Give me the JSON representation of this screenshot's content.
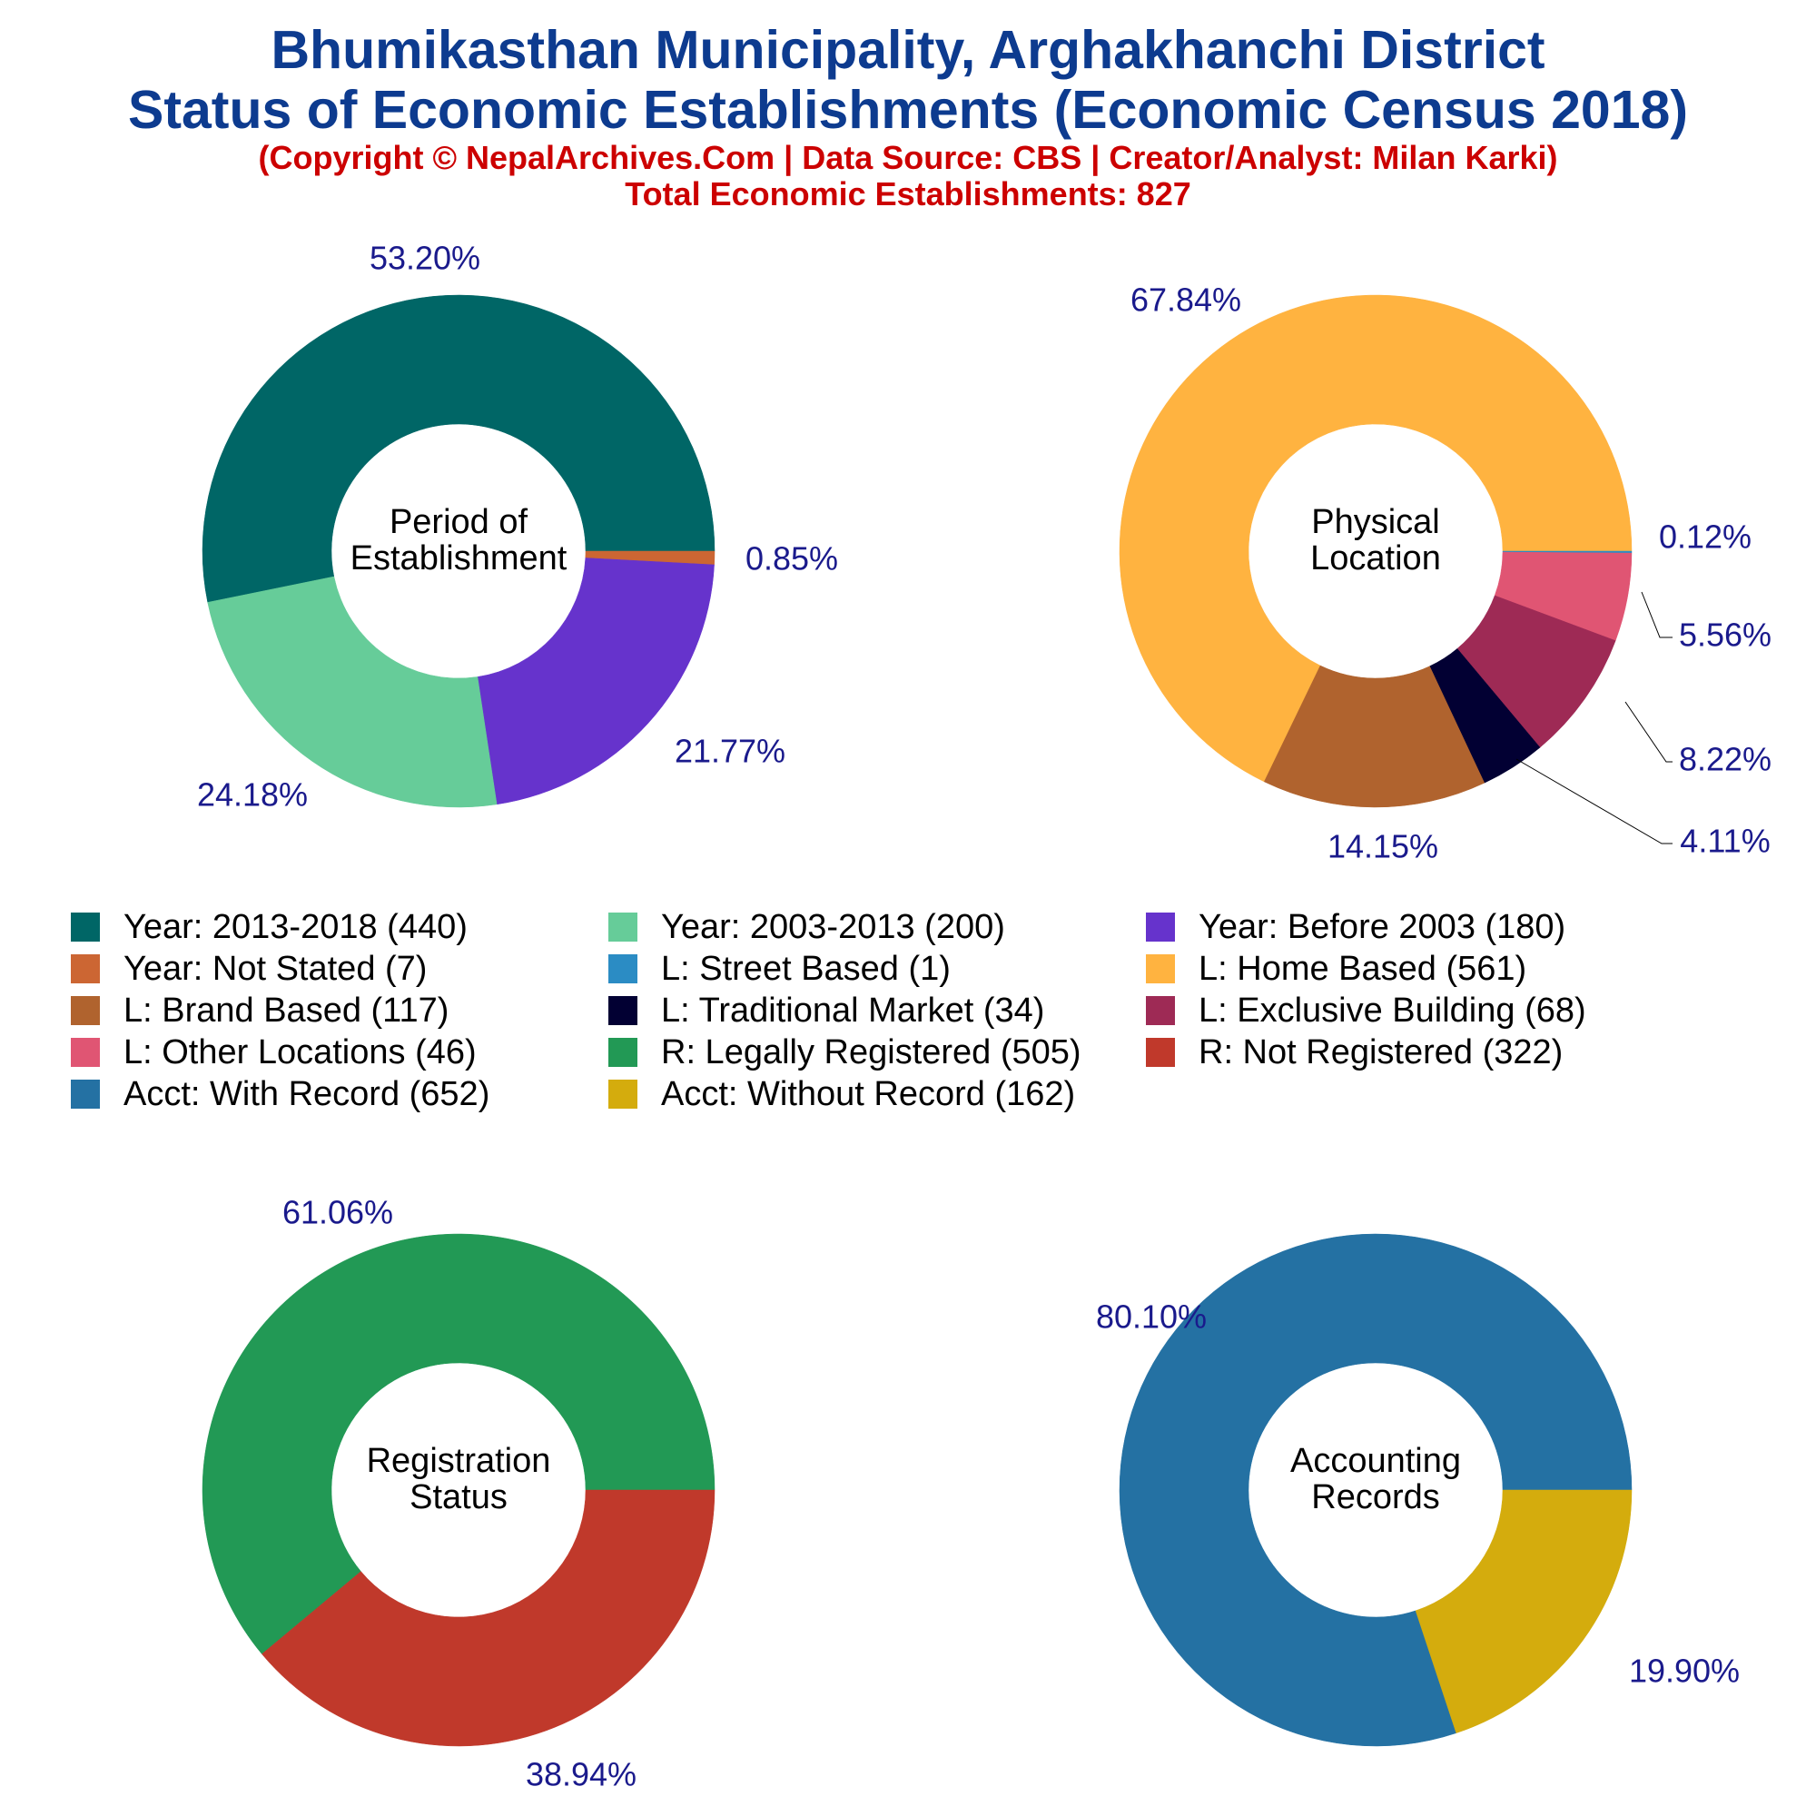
{
  "header": {
    "title_line1": "Bhumikasthan Municipality, Arghakhanchi District",
    "title_line2": "Status of Economic Establishments (Economic Census 2018)",
    "copyright": "(Copyright © NepalArchives.Com | Data Source: CBS | Creator/Analyst: Milan Karki)",
    "total": "Total Economic Establishments: 827"
  },
  "chart_data": [
    {
      "type": "pie",
      "title": "Period of Establishment",
      "title_lines": [
        "Period of",
        "Establishment"
      ],
      "slices": [
        {
          "label": "Year: 2013-2018",
          "value": 440,
          "pct_label": "53.20%",
          "color": "#006666"
        },
        {
          "label": "Year: Not Stated",
          "value": 7,
          "pct_label": "0.85%",
          "color": "#cc6633"
        },
        {
          "label": "Year: Before 2003",
          "value": 180,
          "pct_label": "21.77%",
          "color": "#6633cc"
        },
        {
          "label": "Year: 2003-2013",
          "value": 200,
          "pct_label": "24.18%",
          "color": "#66cc99"
        }
      ]
    },
    {
      "type": "pie",
      "title": "Physical Location",
      "title_lines": [
        "Physical",
        "Location"
      ],
      "slices": [
        {
          "label": "L: Home Based",
          "value": 561,
          "pct_label": "67.84%",
          "color": "#ffb340"
        },
        {
          "label": "L: Street Based",
          "value": 1,
          "pct_label": "0.12%",
          "color": "#2b8cc4"
        },
        {
          "label": "L: Other Locations",
          "value": 46,
          "pct_label": "5.56%",
          "color": "#e05573"
        },
        {
          "label": "L: Exclusive Building",
          "value": 68,
          "pct_label": "8.22%",
          "color": "#9e2a55"
        },
        {
          "label": "L: Traditional Market",
          "value": 34,
          "pct_label": "4.11%",
          "color": "#020033"
        },
        {
          "label": "L: Brand Based",
          "value": 117,
          "pct_label": "14.15%",
          "color": "#b0632e"
        }
      ]
    },
    {
      "type": "pie",
      "title": "Registration Status",
      "title_lines": [
        "Registration",
        "Status"
      ],
      "slices": [
        {
          "label": "R: Legally Registered",
          "value": 505,
          "pct_label": "61.06%",
          "color": "#229955"
        },
        {
          "label": "R: Not Registered",
          "value": 322,
          "pct_label": "38.94%",
          "color": "#c0392b"
        }
      ]
    },
    {
      "type": "pie",
      "title": "Accounting Records",
      "title_lines": [
        "Accounting",
        "Records"
      ],
      "slices": [
        {
          "label": "Acct: With Record",
          "value": 652,
          "pct_label": "80.10%",
          "color": "#2471a3"
        },
        {
          "label": "Acct: Without Record",
          "value": 162,
          "pct_label": "19.90%",
          "color": "#d4ac0d"
        }
      ]
    }
  ],
  "legend": [
    {
      "label": "Year: 2013-2018 (440)",
      "color": "#006666"
    },
    {
      "label": "Year: 2003-2013 (200)",
      "color": "#66cc99"
    },
    {
      "label": "Year: Before 2003 (180)",
      "color": "#6633cc"
    },
    {
      "label": "Year: Not Stated (7)",
      "color": "#cc6633"
    },
    {
      "label": "L: Street Based (1)",
      "color": "#2b8cc4"
    },
    {
      "label": "L: Home Based (561)",
      "color": "#ffb340"
    },
    {
      "label": "L: Brand Based (117)",
      "color": "#b0632e"
    },
    {
      "label": "L: Traditional Market (34)",
      "color": "#020033"
    },
    {
      "label": "L: Exclusive Building (68)",
      "color": "#9e2a55"
    },
    {
      "label": "L: Other Locations (46)",
      "color": "#e05573"
    },
    {
      "label": "R: Legally Registered (505)",
      "color": "#229955"
    },
    {
      "label": "R: Not Registered (322)",
      "color": "#c0392b"
    },
    {
      "label": "Acct: With Record (652)",
      "color": "#2471a3"
    },
    {
      "label": "Acct: Without Record (162)",
      "color": "#d4ac0d"
    }
  ],
  "colors": {
    "title": "#0d3b8f",
    "subtitle": "#cc0000",
    "pct_label": "#1a1a8c"
  }
}
